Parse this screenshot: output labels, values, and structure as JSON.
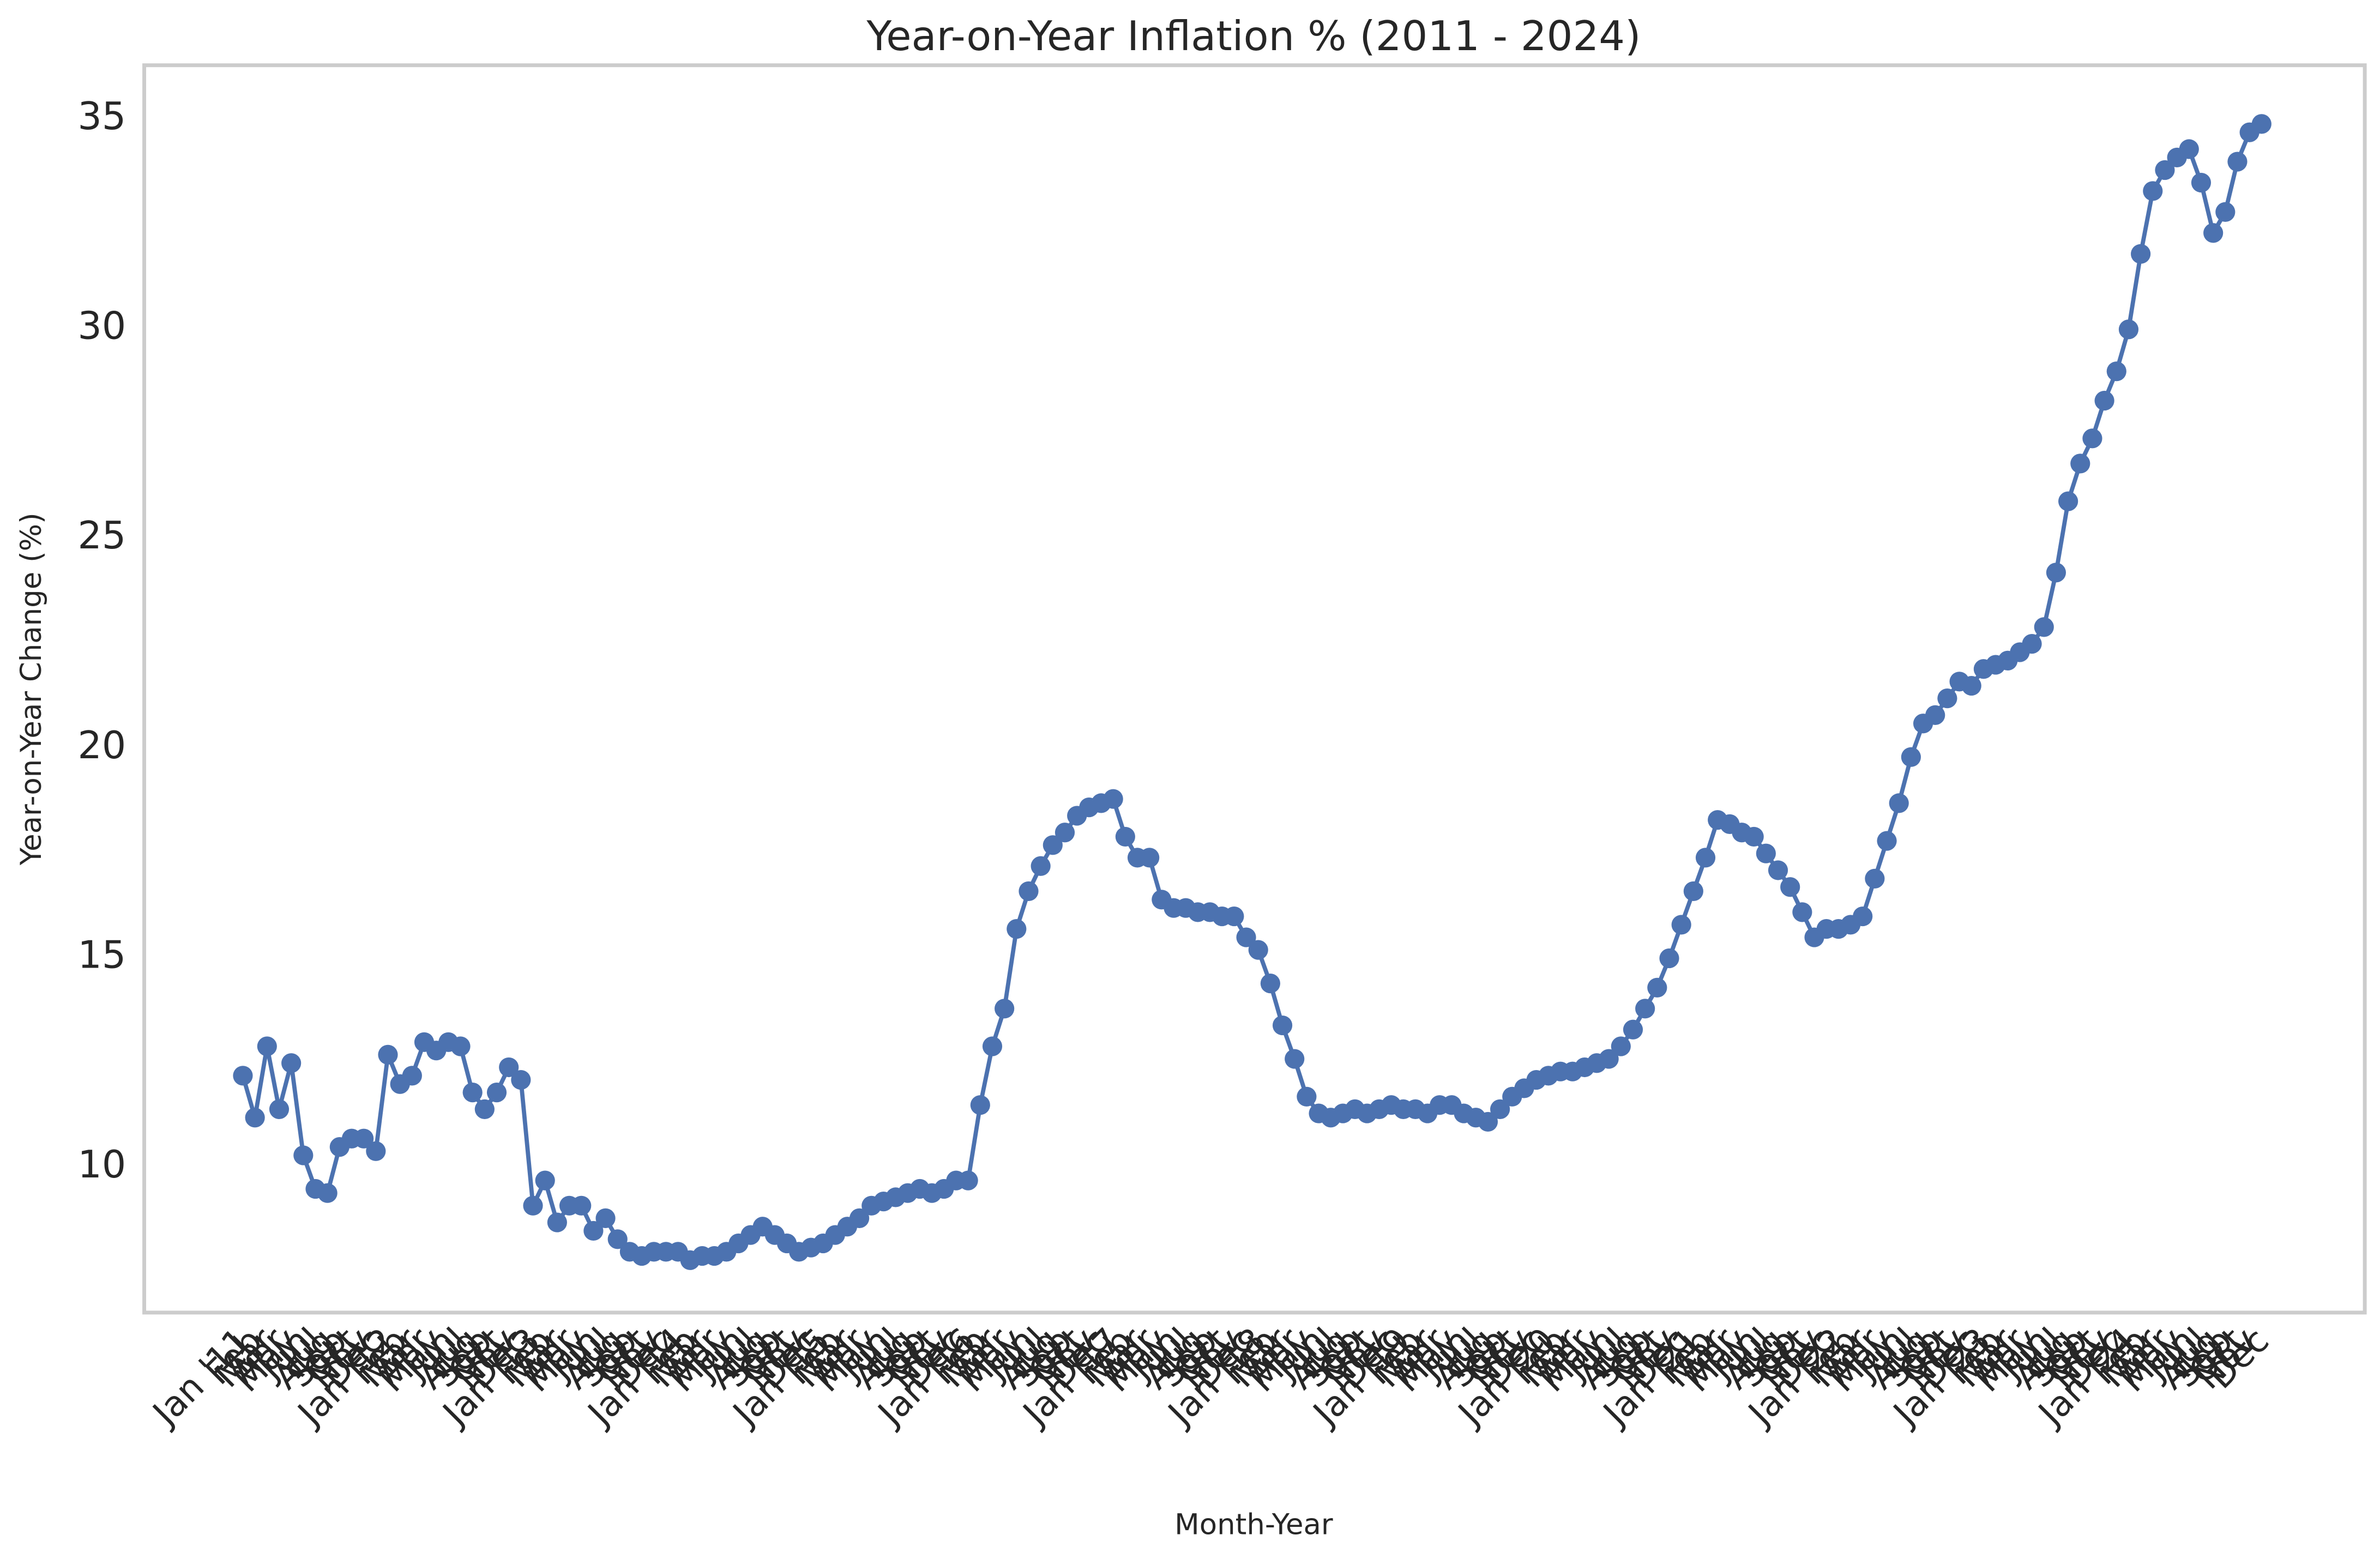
{
  "chart_data": {
    "type": "line",
    "title": "Year-on-Year Inflation % (2011 - 2024)",
    "xlabel": "Month-Year",
    "ylabel": "Year-on-Year Change (%)",
    "categories": [
      "Jan '11",
      "Feb",
      "Mar",
      "Apr",
      "May",
      "Jun",
      "Jul",
      "Aug",
      "Sep",
      "Oct",
      "Nov",
      "Dec",
      "Jan '12",
      "Feb",
      "Mar",
      "Apr",
      "May",
      "Jun",
      "Jul",
      "Aug",
      "Sep",
      "Oct",
      "Nov",
      "Dec",
      "Jan '13",
      "Feb",
      "Mar",
      "Apr",
      "May",
      "Jun",
      "Jul",
      "Aug",
      "Sep",
      "Oct",
      "Nov",
      "Dec",
      "Jan '14",
      "Feb",
      "Mar",
      "Apr",
      "May",
      "Jun",
      "Jul",
      "Aug",
      "Sep",
      "Oct",
      "Nov",
      "Dec",
      "Jan '15",
      "Feb",
      "Mar",
      "Apr",
      "May",
      "Jun",
      "Jul",
      "Aug",
      "Sep",
      "Oct",
      "Nov",
      "Dec",
      "Jan '16",
      "Feb",
      "Mar",
      "Apr",
      "May",
      "Jun",
      "Jul",
      "Aug",
      "Sep",
      "Oct",
      "Nov",
      "Dec",
      "Jan '17",
      "Feb",
      "Mar",
      "Apr",
      "May",
      "Jun",
      "Jul",
      "Aug",
      "Sep",
      "Oct",
      "Nov",
      "Dec",
      "Jan '18",
      "Feb",
      "Mar",
      "Apr",
      "May",
      "Jun",
      "Jul",
      "Aug",
      "Sep",
      "Oct",
      "Nov",
      "Dec",
      "Jan '19",
      "Feb",
      "Mar",
      "Apr",
      "May",
      "Jun",
      "Jul",
      "Aug",
      "Sep",
      "Oct",
      "Nov",
      "Dec",
      "Jan '20",
      "Feb",
      "Mar",
      "Apr",
      "May",
      "Jun",
      "Jul",
      "Aug",
      "Sep",
      "Oct",
      "Nov",
      "Dec",
      "Jan '21",
      "Feb",
      "Mar",
      "Apr",
      "May",
      "Jun",
      "Jul",
      "Aug",
      "Sep",
      "Oct",
      "Nov",
      "Dec",
      "Jan '22",
      "Feb",
      "Mar",
      "Apr",
      "May",
      "Jun",
      "Jul",
      "Aug",
      "Sep",
      "Oct",
      "Nov",
      "Dec",
      "Jan '23",
      "Feb",
      "Mar",
      "Apr",
      "May",
      "Jun",
      "Jul",
      "Aug",
      "Sep",
      "Oct",
      "Nov",
      "Dec",
      "Jan '24",
      "Feb",
      "Mar",
      "Apr",
      "May",
      "Jun",
      "Jul",
      "Aug",
      "Sep",
      "Oct",
      "Nov",
      "Dec"
    ],
    "series": [
      {
        "name": "Year-on-Year Change (%)",
        "color": "#4c72b0",
        "values": [
          12.1,
          11.1,
          12.8,
          11.3,
          12.4,
          10.2,
          9.4,
          9.3,
          10.4,
          10.6,
          10.6,
          10.3,
          12.6,
          11.9,
          12.1,
          12.9,
          12.7,
          12.9,
          12.8,
          11.7,
          11.3,
          11.7,
          12.3,
          12.0,
          9.0,
          9.6,
          8.6,
          9.0,
          9.0,
          8.4,
          8.7,
          8.2,
          7.9,
          7.8,
          7.9,
          7.9,
          7.9,
          7.7,
          7.8,
          7.8,
          7.9,
          8.1,
          8.3,
          8.5,
          8.3,
          8.1,
          7.9,
          8.0,
          8.1,
          8.3,
          8.5,
          8.7,
          9.0,
          9.1,
          9.2,
          9.3,
          9.4,
          9.3,
          9.4,
          9.6,
          9.6,
          11.4,
          12.8,
          13.7,
          15.6,
          16.5,
          17.1,
          17.6,
          17.9,
          18.3,
          18.5,
          18.6,
          18.7,
          17.8,
          17.3,
          17.3,
          16.3,
          16.1,
          16.1,
          16.0,
          16.0,
          15.9,
          15.9,
          15.4,
          15.1,
          14.3,
          13.3,
          12.5,
          11.6,
          11.2,
          11.1,
          11.2,
          11.3,
          11.2,
          11.3,
          11.4,
          11.3,
          11.3,
          11.2,
          11.4,
          11.4,
          11.2,
          11.1,
          11.0,
          11.3,
          11.6,
          11.8,
          12.0,
          12.1,
          12.2,
          12.2,
          12.3,
          12.4,
          12.5,
          12.8,
          13.2,
          13.7,
          14.2,
          14.9,
          15.7,
          16.5,
          17.3,
          18.2,
          18.1,
          17.9,
          17.8,
          17.4,
          17.0,
          16.6,
          16.0,
          15.4,
          15.6,
          15.6,
          15.7,
          15.9,
          16.8,
          17.7,
          18.6,
          19.7,
          20.5,
          20.7,
          21.1,
          21.5,
          21.4,
          21.8,
          21.9,
          22.0,
          22.2,
          22.4,
          22.8,
          24.1,
          25.8,
          26.7,
          27.3,
          28.2,
          28.9,
          29.9,
          31.7,
          33.2,
          33.7,
          34.0,
          34.2,
          33.4,
          32.2,
          32.7,
          33.9,
          34.6,
          34.8
        ]
      }
    ],
    "ylim": [
      6.45,
      36.2
    ],
    "yticks": [
      10,
      15,
      20,
      25,
      30,
      35
    ],
    "grid": false
  }
}
